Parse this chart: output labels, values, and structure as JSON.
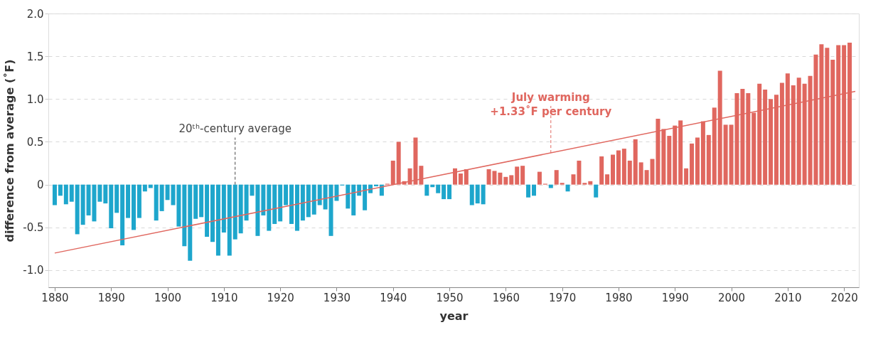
{
  "chart_data": {
    "type": "bar",
    "xlabel": "year",
    "ylabel": "difference from average (˚F)",
    "x": [
      1880,
      1881,
      1882,
      1883,
      1884,
      1885,
      1886,
      1887,
      1888,
      1889,
      1890,
      1891,
      1892,
      1893,
      1894,
      1895,
      1896,
      1897,
      1898,
      1899,
      1900,
      1901,
      1902,
      1903,
      1904,
      1905,
      1906,
      1907,
      1908,
      1909,
      1910,
      1911,
      1912,
      1913,
      1914,
      1915,
      1916,
      1917,
      1918,
      1919,
      1920,
      1921,
      1922,
      1923,
      1924,
      1925,
      1926,
      1927,
      1928,
      1929,
      1930,
      1931,
      1932,
      1933,
      1934,
      1935,
      1936,
      1937,
      1938,
      1939,
      1940,
      1941,
      1942,
      1943,
      1944,
      1945,
      1946,
      1947,
      1948,
      1949,
      1950,
      1951,
      1952,
      1953,
      1954,
      1955,
      1956,
      1957,
      1958,
      1959,
      1960,
      1961,
      1962,
      1963,
      1964,
      1965,
      1966,
      1967,
      1968,
      1969,
      1970,
      1971,
      1972,
      1973,
      1974,
      1975,
      1976,
      1977,
      1978,
      1979,
      1980,
      1981,
      1982,
      1983,
      1984,
      1985,
      1986,
      1987,
      1988,
      1989,
      1990,
      1991,
      1992,
      1993,
      1994,
      1995,
      1996,
      1997,
      1998,
      1999,
      2000,
      2001,
      2002,
      2003,
      2004,
      2005,
      2006,
      2007,
      2008,
      2009,
      2010,
      2011,
      2012,
      2013,
      2014,
      2015,
      2016,
      2017,
      2018,
      2019,
      2020,
      2021
    ],
    "series": [
      {
        "values": [
          -0.24,
          -0.13,
          -0.23,
          -0.2,
          -0.58,
          -0.47,
          -0.36,
          -0.43,
          -0.2,
          -0.22,
          -0.51,
          -0.33,
          -0.71,
          -0.39,
          -0.53,
          -0.39,
          -0.08,
          -0.04,
          -0.42,
          -0.31,
          -0.18,
          -0.24,
          -0.49,
          -0.72,
          -0.89,
          -0.4,
          -0.38,
          -0.61,
          -0.67,
          -0.83,
          -0.56,
          -0.83,
          -0.64,
          -0.57,
          -0.42,
          -0.13,
          -0.6,
          -0.36,
          -0.54,
          -0.46,
          -0.43,
          -0.24,
          -0.46,
          -0.54,
          -0.42,
          -0.38,
          -0.35,
          -0.24,
          -0.29,
          -0.6,
          -0.19,
          -0.01,
          -0.28,
          -0.36,
          -0.13,
          -0.3,
          -0.1,
          -0.02,
          -0.13,
          0.01,
          0.28,
          0.5,
          0.04,
          0.19,
          0.55,
          0.22,
          -0.13,
          -0.03,
          -0.1,
          -0.17,
          -0.17,
          0.19,
          0.13,
          0.18,
          -0.24,
          -0.22,
          -0.23,
          0.18,
          0.16,
          0.14,
          0.09,
          0.11,
          0.21,
          0.22,
          -0.15,
          -0.13,
          0.15,
          0.01,
          -0.04,
          0.17,
          0.02,
          -0.08,
          0.12,
          0.28,
          0.02,
          0.04,
          -0.15,
          0.33,
          0.12,
          0.35,
          0.4,
          0.42,
          0.28,
          0.53,
          0.26,
          0.17,
          0.3,
          0.77,
          0.65,
          0.57,
          0.69,
          0.75,
          0.19,
          0.48,
          0.55,
          0.74,
          0.58,
          0.9,
          1.33,
          0.7,
          0.7,
          1.07,
          1.12,
          1.07,
          0.84,
          1.18,
          1.11,
          1.0,
          1.05,
          1.19,
          1.3,
          1.16,
          1.25,
          1.18,
          1.27,
          1.52,
          1.64,
          1.6,
          1.46,
          1.63,
          1.63,
          1.66
        ],
        "colors": [
          "#1ea6cc",
          "#1ea6cc",
          "#1ea6cc",
          "#1ea6cc",
          "#1ea6cc",
          "#1ea6cc",
          "#1ea6cc",
          "#1ea6cc",
          "#1ea6cc",
          "#1ea6cc",
          "#1ea6cc",
          "#1ea6cc",
          "#1ea6cc",
          "#1ea6cc",
          "#1ea6cc",
          "#1ea6cc",
          "#1ea6cc",
          "#1ea6cc",
          "#1ea6cc",
          "#1ea6cc",
          "#1ea6cc",
          "#1ea6cc",
          "#1ea6cc",
          "#1ea6cc",
          "#1ea6cc",
          "#1ea6cc",
          "#1ea6cc",
          "#1ea6cc",
          "#1ea6cc",
          "#1ea6cc",
          "#1ea6cc",
          "#1ea6cc",
          "#1ea6cc",
          "#1ea6cc",
          "#1ea6cc",
          "#1ea6cc",
          "#1ea6cc",
          "#1ea6cc",
          "#1ea6cc",
          "#1ea6cc",
          "#1ea6cc",
          "#1ea6cc",
          "#1ea6cc",
          "#1ea6cc",
          "#1ea6cc",
          "#1ea6cc",
          "#1ea6cc",
          "#1ea6cc",
          "#1ea6cc",
          "#1ea6cc",
          "#1ea6cc",
          "#1ea6cc",
          "#1ea6cc",
          "#1ea6cc",
          "#1ea6cc",
          "#1ea6cc",
          "#1ea6cc",
          "#1ea6cc",
          "#1ea6cc",
          "#e0675f",
          "#e0675f",
          "#e0675f",
          "#e0675f",
          "#e0675f",
          "#e0675f",
          "#e0675f",
          "#1ea6cc",
          "#1ea6cc",
          "#1ea6cc",
          "#1ea6cc",
          "#1ea6cc",
          "#e0675f",
          "#e0675f",
          "#e0675f",
          "#1ea6cc",
          "#1ea6cc",
          "#1ea6cc",
          "#e0675f",
          "#e0675f",
          "#e0675f",
          "#e0675f",
          "#e0675f",
          "#e0675f",
          "#e0675f",
          "#1ea6cc",
          "#1ea6cc",
          "#e0675f",
          "#e0675f",
          "#1ea6cc",
          "#e0675f",
          "#e0675f",
          "#1ea6cc",
          "#e0675f",
          "#e0675f",
          "#e0675f",
          "#e0675f",
          "#1ea6cc",
          "#e0675f",
          "#e0675f",
          "#e0675f",
          "#e0675f",
          "#e0675f",
          "#e0675f",
          "#e0675f",
          "#e0675f",
          "#e0675f",
          "#e0675f",
          "#e0675f",
          "#e0675f",
          "#e0675f",
          "#e0675f",
          "#e0675f",
          "#e0675f",
          "#e0675f",
          "#e0675f",
          "#e0675f",
          "#e0675f",
          "#e0675f",
          "#e0675f",
          "#e0675f",
          "#e0675f",
          "#e0675f",
          "#e0675f",
          "#e0675f",
          "#e0675f",
          "#e0675f",
          "#e0675f",
          "#e0675f",
          "#e0675f",
          "#e0675f",
          "#e0675f",
          "#e0675f",
          "#e0675f",
          "#e0675f",
          "#e0675f",
          "#e0675f",
          "#e0675f",
          "#e0675f",
          "#e0675f",
          "#e0675f",
          "#e0675f",
          "#e0675f"
        ]
      },
      {
        "type": "line",
        "color": "#e0675f",
        "x": [
          1880,
          2022
        ],
        "values": [
          -0.8,
          1.09
        ]
      }
    ],
    "xlim": [
      1879.5,
      2022
    ],
    "xticks": [
      1880,
      1890,
      1900,
      1910,
      1920,
      1930,
      1940,
      1950,
      1960,
      1970,
      1980,
      1990,
      2000,
      2010,
      2020
    ],
    "ylim": [
      -1.2,
      2.0
    ],
    "yticks": [
      {
        "value": -1.0,
        "label": "-1.0"
      },
      -0.5,
      0,
      0.5,
      {
        "value": 1.0,
        "label": "1.0"
      },
      1.5,
      {
        "value": 2.0,
        "label": "2.0"
      }
    ],
    "grid": "y",
    "annotations": [
      {
        "text": "20ᵗʰ-century average",
        "x": 1912,
        "y": 0
      },
      {
        "text": "July warming\n+1.33˚F per century",
        "x": 1968,
        "y": 0.37
      }
    ]
  }
}
